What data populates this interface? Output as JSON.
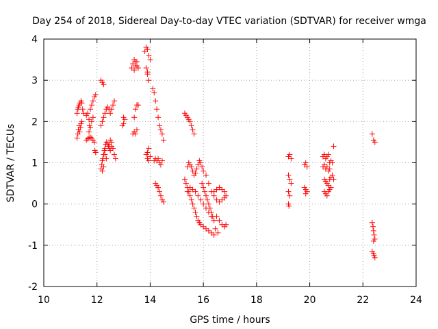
{
  "chart_data": {
    "type": "scatter",
    "title": "Day 254 of 2018, Sidereal Day-to-day VTEC variation (SDTVAR) for receiver wmga",
    "xlabel": "GPS time / hours",
    "ylabel": "SDTVAR / TECUs",
    "xlim": [
      10,
      24
    ],
    "ylim": [
      -2,
      4
    ],
    "xticks": [
      "10",
      "12",
      "14",
      "16",
      "18",
      "20",
      "22",
      "24"
    ],
    "yticks": [
      "-2",
      "-1",
      "0",
      "1",
      "2",
      "3",
      "4"
    ],
    "grid": true,
    "marker": "+",
    "color": "#ff0000",
    "series": [
      {
        "name": "SDTVAR",
        "points": [
          [
            11.25,
            1.6
          ],
          [
            11.28,
            1.7
          ],
          [
            11.3,
            1.8
          ],
          [
            11.33,
            1.9
          ],
          [
            11.35,
            1.75
          ],
          [
            11.38,
            1.85
          ],
          [
            11.4,
            1.95
          ],
          [
            11.43,
            2.0
          ],
          [
            11.25,
            2.2
          ],
          [
            11.28,
            2.3
          ],
          [
            11.3,
            2.35
          ],
          [
            11.33,
            2.4
          ],
          [
            11.36,
            2.45
          ],
          [
            11.4,
            2.5
          ],
          [
            11.43,
            2.45
          ],
          [
            11.46,
            2.3
          ],
          [
            11.5,
            2.2
          ],
          [
            11.6,
            2.15
          ],
          [
            11.65,
            2.2
          ],
          [
            11.7,
            2.05
          ],
          [
            11.72,
            1.9
          ],
          [
            11.75,
            2.3
          ],
          [
            11.8,
            2.4
          ],
          [
            11.85,
            2.5
          ],
          [
            11.9,
            2.6
          ],
          [
            11.95,
            2.65
          ],
          [
            11.6,
            1.55
          ],
          [
            11.65,
            1.58
          ],
          [
            11.7,
            1.6
          ],
          [
            11.75,
            1.62
          ],
          [
            11.8,
            1.6
          ],
          [
            11.85,
            1.55
          ],
          [
            11.9,
            1.5
          ],
          [
            11.92,
            1.3
          ],
          [
            11.95,
            1.25
          ],
          [
            11.7,
            1.75
          ],
          [
            11.75,
            1.85
          ],
          [
            11.8,
            2.0
          ],
          [
            11.85,
            2.1
          ],
          [
            12.15,
            3.0
          ],
          [
            12.2,
            2.95
          ],
          [
            12.25,
            2.9
          ],
          [
            12.15,
            1.9
          ],
          [
            12.2,
            2.0
          ],
          [
            12.25,
            2.1
          ],
          [
            12.3,
            2.2
          ],
          [
            12.35,
            2.3
          ],
          [
            12.4,
            2.35
          ],
          [
            12.45,
            2.3
          ],
          [
            12.5,
            2.2
          ],
          [
            12.55,
            2.3
          ],
          [
            12.6,
            2.4
          ],
          [
            12.65,
            2.5
          ],
          [
            12.15,
            0.85
          ],
          [
            12.18,
            0.95
          ],
          [
            12.2,
            1.05
          ],
          [
            12.22,
            1.1
          ],
          [
            12.25,
            1.2
          ],
          [
            12.28,
            1.3
          ],
          [
            12.3,
            1.35
          ],
          [
            12.33,
            1.45
          ],
          [
            12.36,
            1.5
          ],
          [
            12.4,
            1.45
          ],
          [
            12.43,
            1.4
          ],
          [
            12.46,
            1.35
          ],
          [
            12.5,
            1.3
          ],
          [
            12.55,
            1.4
          ],
          [
            12.6,
            1.35
          ],
          [
            12.65,
            1.2
          ],
          [
            12.7,
            1.1
          ],
          [
            12.3,
            1.2
          ],
          [
            12.35,
            1.1
          ],
          [
            12.2,
            0.8
          ],
          [
            12.25,
            0.9
          ],
          [
            12.5,
            1.55
          ],
          [
            12.55,
            1.5
          ],
          [
            12.45,
            1.45
          ],
          [
            12.95,
            1.9
          ],
          [
            13.0,
            1.95
          ],
          [
            13.0,
            2.1
          ],
          [
            13.05,
            2.05
          ],
          [
            13.3,
            3.3
          ],
          [
            13.35,
            3.4
          ],
          [
            13.4,
            3.5
          ],
          [
            13.45,
            3.45
          ],
          [
            13.5,
            3.35
          ],
          [
            13.55,
            3.3
          ],
          [
            13.4,
            3.25
          ],
          [
            13.45,
            3.35
          ],
          [
            13.5,
            3.45
          ],
          [
            13.4,
            2.1
          ],
          [
            13.45,
            2.3
          ],
          [
            13.5,
            2.4
          ],
          [
            13.55,
            2.4
          ],
          [
            13.35,
            1.7
          ],
          [
            13.4,
            1.75
          ],
          [
            13.45,
            1.7
          ],
          [
            13.5,
            1.8
          ],
          [
            13.8,
            3.7
          ],
          [
            13.85,
            3.8
          ],
          [
            13.9,
            3.75
          ],
          [
            13.95,
            3.6
          ],
          [
            14.0,
            3.5
          ],
          [
            13.85,
            3.3
          ],
          [
            13.9,
            3.15
          ],
          [
            13.95,
            3.0
          ],
          [
            13.9,
            3.2
          ],
          [
            13.85,
            1.2
          ],
          [
            13.9,
            1.1
          ],
          [
            13.95,
            1.05
          ],
          [
            14.0,
            1.15
          ],
          [
            13.9,
            1.25
          ],
          [
            13.95,
            1.35
          ],
          [
            14.1,
            2.8
          ],
          [
            14.15,
            2.7
          ],
          [
            14.2,
            2.5
          ],
          [
            14.25,
            2.3
          ],
          [
            14.3,
            2.1
          ],
          [
            14.35,
            1.9
          ],
          [
            14.4,
            1.8
          ],
          [
            14.45,
            1.7
          ],
          [
            14.5,
            1.55
          ],
          [
            14.15,
            1.05
          ],
          [
            14.2,
            1.1
          ],
          [
            14.25,
            1.05
          ],
          [
            14.3,
            1.1
          ],
          [
            14.35,
            1.0
          ],
          [
            14.4,
            0.95
          ],
          [
            14.45,
            1.05
          ],
          [
            14.2,
            0.5
          ],
          [
            14.25,
            0.45
          ],
          [
            14.3,
            0.4
          ],
          [
            14.35,
            0.3
          ],
          [
            14.4,
            0.2
          ],
          [
            14.45,
            0.1
          ],
          [
            14.5,
            0.05
          ],
          [
            15.3,
            2.2
          ],
          [
            15.35,
            2.15
          ],
          [
            15.4,
            2.1
          ],
          [
            15.45,
            2.05
          ],
          [
            15.5,
            2.0
          ],
          [
            15.55,
            1.9
          ],
          [
            15.6,
            1.8
          ],
          [
            15.65,
            1.7
          ],
          [
            15.3,
            0.6
          ],
          [
            15.35,
            0.5
          ],
          [
            15.4,
            0.4
          ],
          [
            15.45,
            0.3
          ],
          [
            15.5,
            0.2
          ],
          [
            15.55,
            0.1
          ],
          [
            15.6,
            0.0
          ],
          [
            15.65,
            -0.1
          ],
          [
            15.7,
            -0.2
          ],
          [
            15.75,
            -0.3
          ],
          [
            15.8,
            -0.4
          ],
          [
            15.85,
            -0.45
          ],
          [
            15.9,
            -0.5
          ],
          [
            16.0,
            -0.55
          ],
          [
            16.1,
            -0.6
          ],
          [
            16.2,
            -0.65
          ],
          [
            16.3,
            -0.7
          ],
          [
            16.4,
            -0.75
          ],
          [
            15.4,
            0.9
          ],
          [
            15.45,
            1.0
          ],
          [
            15.5,
            0.95
          ],
          [
            15.55,
            0.9
          ],
          [
            15.6,
            0.8
          ],
          [
            15.65,
            0.7
          ],
          [
            15.7,
            0.75
          ],
          [
            15.75,
            0.85
          ],
          [
            15.8,
            0.95
          ],
          [
            15.85,
            1.05
          ],
          [
            15.9,
            1.0
          ],
          [
            15.95,
            0.9
          ],
          [
            16.0,
            0.8
          ],
          [
            15.4,
            0.3
          ],
          [
            15.5,
            0.4
          ],
          [
            15.6,
            0.35
          ],
          [
            15.7,
            0.3
          ],
          [
            15.8,
            0.2
          ],
          [
            15.9,
            0.1
          ],
          [
            16.0,
            0.0
          ],
          [
            16.1,
            -0.1
          ],
          [
            16.2,
            -0.2
          ],
          [
            16.3,
            -0.3
          ],
          [
            15.95,
            0.5
          ],
          [
            16.0,
            0.4
          ],
          [
            16.05,
            0.3
          ],
          [
            16.1,
            0.2
          ],
          [
            16.15,
            0.1
          ],
          [
            16.2,
            0.0
          ],
          [
            16.25,
            -0.1
          ],
          [
            16.3,
            -0.2
          ],
          [
            16.35,
            -0.3
          ],
          [
            16.4,
            -0.4
          ],
          [
            16.1,
            0.7
          ],
          [
            16.2,
            0.5
          ],
          [
            16.3,
            0.3
          ],
          [
            16.4,
            0.2
          ],
          [
            16.5,
            0.1
          ],
          [
            16.6,
            0.05
          ],
          [
            16.7,
            0.1
          ],
          [
            16.8,
            0.15
          ],
          [
            16.85,
            0.2
          ],
          [
            16.4,
            0.3
          ],
          [
            16.5,
            0.35
          ],
          [
            16.6,
            0.4
          ],
          [
            16.7,
            0.35
          ],
          [
            16.8,
            0.3
          ],
          [
            16.5,
            -0.3
          ],
          [
            16.6,
            -0.4
          ],
          [
            16.7,
            -0.5
          ],
          [
            16.8,
            -0.55
          ],
          [
            16.85,
            -0.5
          ],
          [
            16.55,
            -0.7
          ],
          [
            16.45,
            -0.6
          ],
          [
            19.2,
            1.15
          ],
          [
            19.25,
            1.2
          ],
          [
            19.3,
            1.1
          ],
          [
            19.2,
            0.7
          ],
          [
            19.25,
            0.6
          ],
          [
            19.3,
            0.5
          ],
          [
            19.2,
            0.3
          ],
          [
            19.25,
            0.2
          ],
          [
            19.2,
            0.0
          ],
          [
            19.22,
            -0.05
          ],
          [
            19.8,
            0.95
          ],
          [
            19.85,
            1.0
          ],
          [
            19.9,
            0.9
          ],
          [
            19.8,
            0.4
          ],
          [
            19.85,
            0.35
          ],
          [
            19.9,
            0.3
          ],
          [
            19.85,
            0.25
          ],
          [
            20.5,
            1.15
          ],
          [
            20.55,
            1.2
          ],
          [
            20.6,
            1.1
          ],
          [
            20.65,
            1.15
          ],
          [
            20.7,
            1.2
          ],
          [
            20.75,
            1.0
          ],
          [
            20.8,
            1.05
          ],
          [
            20.85,
            1.0
          ],
          [
            20.5,
            0.9
          ],
          [
            20.55,
            0.95
          ],
          [
            20.6,
            0.85
          ],
          [
            20.65,
            0.9
          ],
          [
            20.7,
            0.8
          ],
          [
            20.75,
            0.85
          ],
          [
            20.55,
            0.6
          ],
          [
            20.6,
            0.55
          ],
          [
            20.65,
            0.5
          ],
          [
            20.7,
            0.45
          ],
          [
            20.75,
            0.6
          ],
          [
            20.8,
            0.65
          ],
          [
            20.85,
            0.7
          ],
          [
            20.9,
            0.6
          ],
          [
            20.55,
            0.3
          ],
          [
            20.6,
            0.25
          ],
          [
            20.65,
            0.2
          ],
          [
            20.7,
            0.3
          ],
          [
            20.75,
            0.35
          ],
          [
            20.8,
            0.4
          ],
          [
            20.9,
            1.4
          ],
          [
            22.35,
            1.7
          ],
          [
            22.4,
            1.55
          ],
          [
            22.45,
            1.5
          ],
          [
            22.35,
            -0.45
          ],
          [
            22.38,
            -0.55
          ],
          [
            22.4,
            -0.65
          ],
          [
            22.42,
            -0.75
          ],
          [
            22.45,
            -0.85
          ],
          [
            22.4,
            -0.9
          ],
          [
            22.35,
            -1.15
          ],
          [
            22.4,
            -1.2
          ],
          [
            22.42,
            -1.25
          ],
          [
            22.45,
            -1.3
          ]
        ]
      }
    ]
  }
}
